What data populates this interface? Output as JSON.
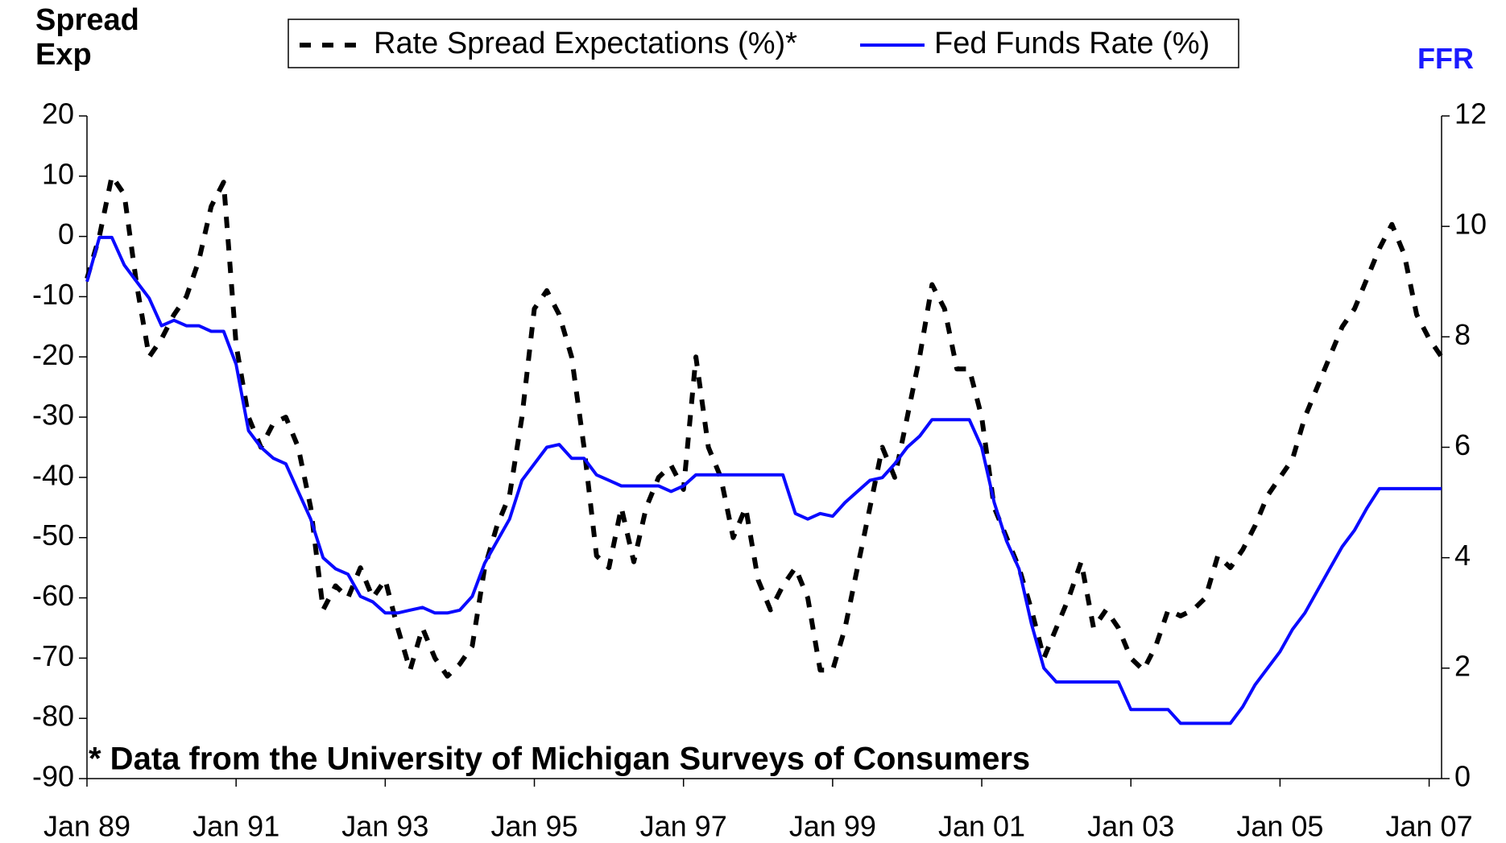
{
  "chart_data": {
    "type": "line",
    "y_label": "Spread Exp",
    "y2_label": "FFR",
    "annotation": "* Data from the University of Michigan Surveys of Consumers",
    "categories": [
      "Jan 89",
      null,
      null,
      null,
      null,
      null,
      null,
      null,
      null,
      null,
      null,
      null,
      "Jan 91",
      null,
      null,
      null,
      null,
      null,
      null,
      null,
      null,
      null,
      null,
      null,
      "Jan 93",
      null,
      null,
      null,
      null,
      null,
      null,
      null,
      null,
      null,
      null,
      null,
      "Jan 95",
      null,
      null,
      null,
      null,
      null,
      null,
      null,
      null,
      null,
      null,
      null,
      "Jan 97",
      null,
      null,
      null,
      null,
      null,
      null,
      null,
      null,
      null,
      null,
      null,
      "Jan 99",
      null,
      null,
      null,
      null,
      null,
      null,
      null,
      null,
      null,
      null,
      null,
      "Jan 01",
      null,
      null,
      null,
      null,
      null,
      null,
      null,
      null,
      null,
      null,
      null,
      "Jan 03",
      null,
      null,
      null,
      null,
      null,
      null,
      null,
      null,
      null,
      null,
      null,
      "Jan 05",
      null,
      null,
      null,
      null,
      null,
      null,
      null,
      null,
      null,
      null,
      null,
      "Jan 07",
      null
    ],
    "series": [
      {
        "name": "Rate Spread Expectations (%)*",
        "color": "#000000",
        "dash": true,
        "values": [
          -7,
          0,
          10,
          7,
          -8,
          -20,
          -17,
          -13,
          -10,
          -4,
          5,
          9,
          -18,
          -30,
          -35,
          -31,
          -30,
          -35,
          -45,
          -62,
          -58,
          -60,
          -55,
          -60,
          -57,
          -65,
          -72,
          -65,
          -70,
          -73,
          -71,
          -68,
          -55,
          -48,
          -43,
          -30,
          -12,
          -9,
          -13,
          -20,
          -35,
          -53,
          -55,
          -45,
          -54,
          -45,
          -40,
          -38,
          -42,
          -20,
          -35,
          -40,
          -50,
          -45,
          -57,
          -62,
          -58,
          -55,
          -60,
          -72,
          -72,
          -65,
          -55,
          -45,
          -35,
          -40,
          -30,
          -20,
          -8,
          -12,
          -22,
          -22,
          -30,
          -45,
          -50,
          -55,
          -62,
          -70,
          -65,
          -60,
          -54,
          -65,
          -62,
          -65,
          -70,
          -72,
          -68,
          -62,
          -63,
          -62,
          -60,
          -53,
          -55,
          -52,
          -48,
          -43,
          -40,
          -37,
          -30,
          -25,
          -20,
          -15,
          -12,
          -7,
          -2,
          2,
          -3,
          -13,
          -17,
          -20
        ]
      },
      {
        "name": "Fed Funds Rate (%)",
        "color": "#0a0aff",
        "axis": "y2",
        "values": [
          9.0,
          9.8,
          9.8,
          9.3,
          9.0,
          8.7,
          8.2,
          8.3,
          8.2,
          8.2,
          8.1,
          8.1,
          7.5,
          6.3,
          6.0,
          5.8,
          5.7,
          5.2,
          4.7,
          4.0,
          3.8,
          3.7,
          3.3,
          3.2,
          3.0,
          3.0,
          3.05,
          3.1,
          3.0,
          3.0,
          3.05,
          3.3,
          3.9,
          4.3,
          4.7,
          5.4,
          5.7,
          6.0,
          6.05,
          5.8,
          5.8,
          5.5,
          5.4,
          5.3,
          5.3,
          5.3,
          5.3,
          5.2,
          5.3,
          5.5,
          5.5,
          5.5,
          5.5,
          5.5,
          5.5,
          5.5,
          5.5,
          4.8,
          4.7,
          4.8,
          4.75,
          5.0,
          5.2,
          5.4,
          5.45,
          5.7,
          6.0,
          6.2,
          6.5,
          6.5,
          6.5,
          6.5,
          6.0,
          5.0,
          4.3,
          3.8,
          2.8,
          2.0,
          1.75,
          1.75,
          1.75,
          1.75,
          1.75,
          1.75,
          1.25,
          1.25,
          1.25,
          1.25,
          1.0,
          1.0,
          1.0,
          1.0,
          1.0,
          1.3,
          1.7,
          2.0,
          2.3,
          2.7,
          3.0,
          3.4,
          3.8,
          4.2,
          4.5,
          4.9,
          5.25,
          5.25,
          5.25,
          5.25,
          5.25,
          5.25
        ]
      }
    ],
    "ylim": [
      -90,
      20
    ],
    "yticks": [
      -90,
      -80,
      -70,
      -60,
      -50,
      -40,
      -30,
      -20,
      -10,
      0,
      10,
      20
    ],
    "y2lim": [
      0,
      12
    ],
    "y2ticks": [
      0,
      2,
      4,
      6,
      8,
      10,
      12
    ],
    "y2_color": "#1a1aff",
    "grid": false,
    "legend": "top"
  }
}
